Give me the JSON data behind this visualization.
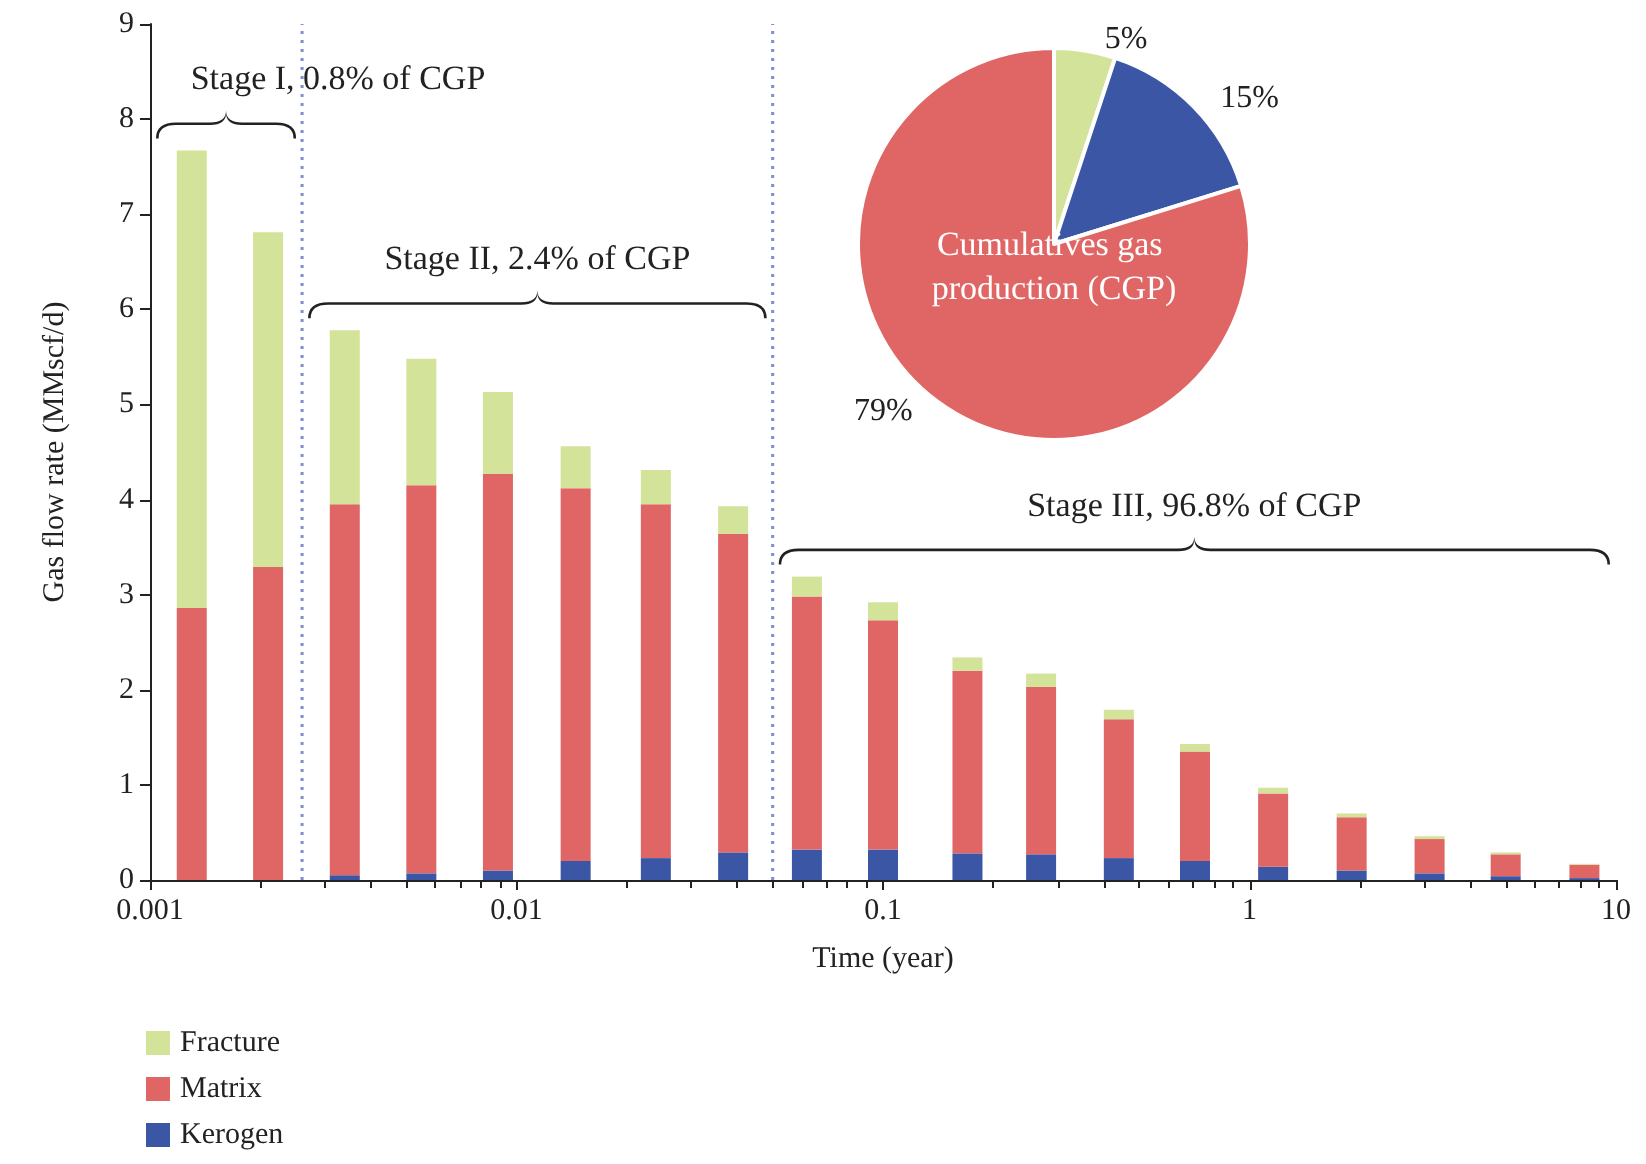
{
  "chart_data": [
    {
      "type": "bar",
      "stacked": true,
      "log": "x",
      "xlabel": "Time (year)",
      "ylabel": "Gas flow rate (MMscf/d)",
      "x": [
        0.0013,
        0.0021,
        0.0034,
        0.0055,
        0.0089,
        0.0145,
        0.024,
        0.039,
        0.062,
        0.1,
        0.17,
        0.27,
        0.44,
        0.71,
        1.16,
        1.9,
        3.1,
        5.0,
        8.2
      ],
      "series": [
        {
          "name": "Kerogen",
          "color": "#3a56a5",
          "values": [
            0,
            0,
            0.05,
            0.07,
            0.1,
            0.2,
            0.23,
            0.29,
            0.32,
            0.32,
            0.28,
            0.27,
            0.23,
            0.2,
            0.14,
            0.1,
            0.07,
            0.04,
            0.02
          ]
        },
        {
          "name": "Matrix",
          "color": "#e06666",
          "values": [
            2.86,
            3.29,
            3.9,
            4.08,
            4.17,
            3.92,
            3.72,
            3.35,
            2.66,
            2.41,
            1.92,
            1.76,
            1.46,
            1.15,
            0.77,
            0.56,
            0.36,
            0.23,
            0.14
          ]
        },
        {
          "name": "Fracture",
          "color": "#d4e39a",
          "values": [
            4.81,
            3.52,
            1.83,
            1.33,
            0.86,
            0.44,
            0.36,
            0.29,
            0.21,
            0.19,
            0.14,
            0.14,
            0.1,
            0.08,
            0.06,
            0.04,
            0.03,
            0.02,
            0.01
          ]
        }
      ],
      "xlim": [
        0.001,
        10
      ],
      "xticks": [
        0.001,
        0.01,
        0.1,
        1,
        10
      ],
      "ylim": [
        0,
        9
      ],
      "yticks": [
        0,
        1,
        2,
        3,
        4,
        5,
        6,
        7,
        8,
        9
      ],
      "grid": false,
      "legend": "bottom left",
      "ref_lines": [
        {
          "axis": "x",
          "value": 0.0026,
          "color": "#7b8fd1",
          "line_style": "dotted"
        },
        {
          "axis": "x",
          "value": 0.05,
          "color": "#7b8fd1",
          "line_style": "dotted"
        }
      ],
      "annotations": [
        "Stage I, 0.8% of CGP",
        "Stage II, 2.4% of CGP",
        "Stage III, 96.8% of CGP"
      ]
    },
    {
      "type": "pie",
      "title": "Cumulatives gas production (CGP)",
      "categories": [
        null,
        null,
        null
      ],
      "values": [
        5,
        15,
        79
      ],
      "colors": [
        "#d4e39a",
        "#3a56a5",
        "#e06666"
      ],
      "value_labels": [
        "5%",
        "15%",
        "79%"
      ]
    }
  ]
}
